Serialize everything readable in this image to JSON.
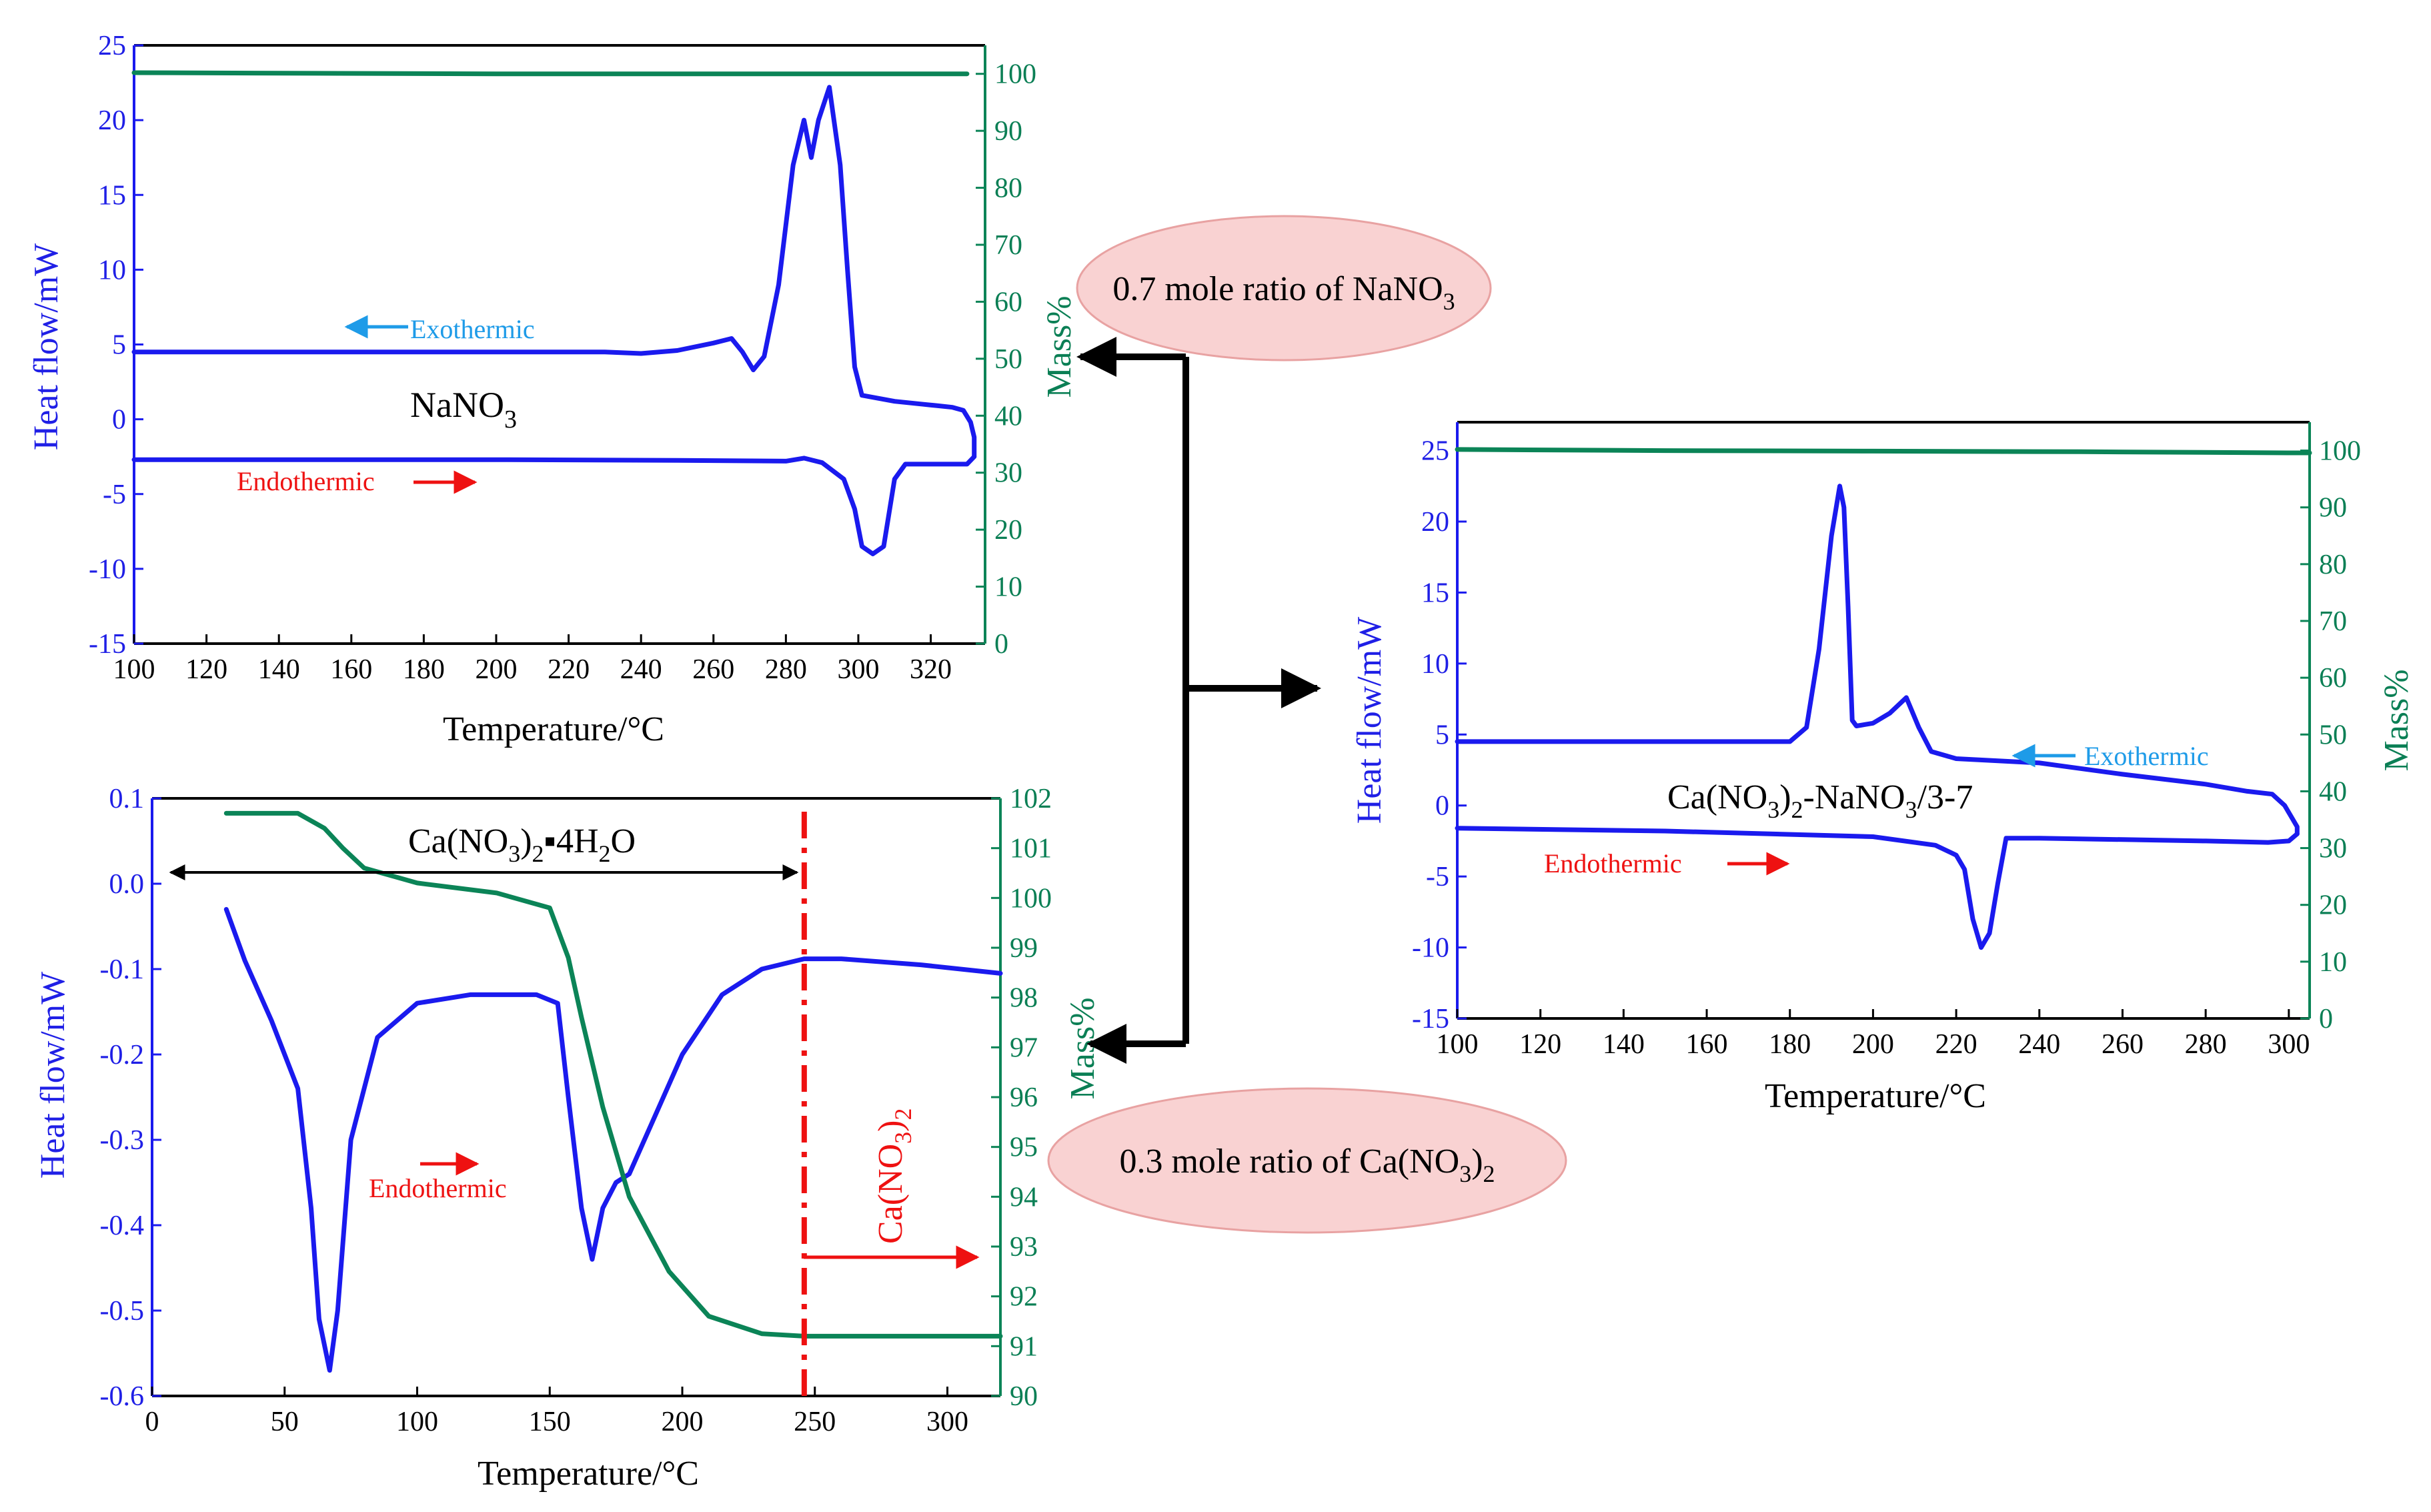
{
  "colors": {
    "heat": "#1a1aee",
    "mass": "#0b8457",
    "blue_text": "#1f1fe6",
    "green_text": "#0b7f55",
    "red": "#ee1111",
    "cyan": "#1e9be8",
    "bubble_fill": "#f9d2d2",
    "bubble_stroke": "#e8a2a2",
    "black": "#000000"
  },
  "bubbles": {
    "nano3": "0.7 mole ratio of NaNO",
    "nano3_sub": "3",
    "ca": "0.3 mole ratio of  Ca(NO",
    "ca_sub1": "3",
    "ca_close": ")",
    "ca_sub2": "2"
  },
  "chart_data": [
    {
      "id": "nano3",
      "type": "line",
      "title": "",
      "xlabel": "Temperature/°C",
      "ylabel": "Heat flow/mW",
      "y2label": "Mass%",
      "xlim": [
        100,
        335
      ],
      "ylim": [
        -15,
        25
      ],
      "y2lim": [
        0,
        105
      ],
      "x_ticks": [
        "100",
        "120",
        "140",
        "160",
        "180",
        "200",
        "220",
        "240",
        "260",
        "280",
        "300",
        "320"
      ],
      "y_ticks": [
        "-15",
        "-10",
        "-5",
        "0",
        "5",
        "10",
        "15",
        "20",
        "25"
      ],
      "y2_ticks": [
        "0",
        "10",
        "20",
        "30",
        "40",
        "50",
        "60",
        "70",
        "80",
        "90",
        "100"
      ],
      "annotations": {
        "exo": "Exothermic",
        "endo": "Endothermic",
        "sample": "NaNO",
        "sample_sub": "3"
      },
      "series": [
        {
          "name": "Heat flow (exothermic)",
          "axis": "left",
          "x": [
            100,
            150,
            200,
            230,
            240,
            250,
            260,
            265,
            268,
            271,
            274,
            278,
            282,
            285,
            287,
            289,
            292,
            295,
            297,
            299,
            301,
            310,
            318,
            322,
            326,
            329,
            331,
            332,
            332
          ],
          "y": [
            4.5,
            4.5,
            4.5,
            4.5,
            4.4,
            4.6,
            5.1,
            5.4,
            4.5,
            3.3,
            4.2,
            9,
            17,
            20,
            17.5,
            20,
            22.2,
            17,
            10,
            3.5,
            1.6,
            1.2,
            1,
            0.9,
            0.8,
            0.6,
            -0.2,
            -1.2,
            -2.5
          ]
        },
        {
          "name": "Heat flow (endothermic)",
          "axis": "left",
          "x": [
            100,
            150,
            200,
            250,
            280,
            285,
            290,
            296,
            299,
            301,
            304,
            307,
            310,
            313,
            318,
            325,
            330,
            332
          ],
          "y": [
            -2.7,
            -2.7,
            -2.7,
            -2.75,
            -2.8,
            -2.6,
            -2.9,
            -4,
            -6,
            -8.5,
            -9,
            -8.5,
            -4,
            -3,
            -3,
            -3,
            -3,
            -2.5
          ]
        },
        {
          "name": "Mass",
          "axis": "right",
          "x": [
            100,
            150,
            200,
            250,
            300,
            330
          ],
          "y": [
            100.2,
            100.1,
            100,
            100,
            100,
            100
          ]
        }
      ]
    },
    {
      "id": "cano3",
      "type": "line",
      "title": "",
      "xlabel": "Temperature/°C",
      "ylabel": "Heat flow/mW",
      "y2label": "Mass%",
      "xlim": [
        0,
        320
      ],
      "ylim": [
        -0.6,
        0.1
      ],
      "y2lim": [
        90,
        102
      ],
      "x_ticks": [
        "0",
        "50",
        "100",
        "150",
        "200",
        "250",
        "300"
      ],
      "y_ticks": [
        "-0.6",
        "-0.5",
        "-0.4",
        "-0.3",
        "-0.2",
        "-0.1",
        "0.0",
        "0.1"
      ],
      "y2_ticks": [
        "90",
        "91",
        "92",
        "93",
        "94",
        "95",
        "96",
        "97",
        "98",
        "99",
        "100",
        "101",
        "102"
      ],
      "annotations": {
        "endo": "Endothermic",
        "range_a": "Ca(NO",
        "range_sub1": "3",
        "range_b": ")",
        "range_sub2": "2",
        "range_c": "▪4H",
        "range_sub3": "2",
        "range_d": "O",
        "product": "Ca(NO",
        "product_sub1": "3",
        "product_b": ")",
        "product_sub2": "2",
        "boundary_x": 246
      },
      "series": [
        {
          "name": "Heat flow",
          "axis": "left",
          "x": [
            28,
            35,
            45,
            55,
            60,
            63,
            67,
            70,
            75,
            85,
            100,
            120,
            145,
            153,
            157,
            162,
            166,
            170,
            175,
            180,
            190,
            200,
            215,
            230,
            246,
            260,
            290,
            320
          ],
          "y": [
            -0.03,
            -0.09,
            -0.16,
            -0.24,
            -0.38,
            -0.51,
            -0.57,
            -0.5,
            -0.3,
            -0.18,
            -0.14,
            -0.13,
            -0.13,
            -0.14,
            -0.25,
            -0.38,
            -0.44,
            -0.38,
            -0.35,
            -0.34,
            -0.27,
            -0.2,
            -0.13,
            -0.1,
            -0.088,
            -0.088,
            -0.095,
            -0.105
          ]
        },
        {
          "name": "Mass",
          "axis": "right",
          "x": [
            28,
            40,
            55,
            65,
            72,
            80,
            100,
            130,
            150,
            157,
            162,
            170,
            180,
            195,
            210,
            230,
            246,
            300,
            320
          ],
          "y": [
            101.7,
            101.7,
            101.7,
            101.4,
            101,
            100.6,
            100.3,
            100.1,
            99.8,
            98.8,
            97.6,
            95.8,
            94,
            92.5,
            91.6,
            91.25,
            91.2,
            91.2,
            91.2
          ]
        }
      ]
    },
    {
      "id": "mixture",
      "type": "line",
      "title": "",
      "xlabel": "Temperature/°C",
      "ylabel": "Heat flow/mW",
      "y2label": "Mass%",
      "xlim": [
        100,
        305
      ],
      "ylim": [
        -15,
        27
      ],
      "y2lim": [
        0,
        105
      ],
      "x_ticks": [
        "100",
        "120",
        "140",
        "160",
        "180",
        "200",
        "220",
        "240",
        "260",
        "280",
        "300"
      ],
      "y_ticks": [
        "-15",
        "-10",
        "-5",
        "0",
        "5",
        "10",
        "15",
        "20",
        "25"
      ],
      "y2_ticks": [
        "0",
        "10",
        "20",
        "30",
        "40",
        "50",
        "60",
        "70",
        "80",
        "90",
        "100"
      ],
      "annotations": {
        "exo": "Exothermic",
        "endo": "Endothermic",
        "label_a": "Ca(NO",
        "label_sub1": "3",
        "label_b": ")",
        "label_sub2": "2",
        "label_c": "-NaNO",
        "label_sub3": "3",
        "label_d": "/3-7"
      },
      "series": [
        {
          "name": "Heat flow (exothermic)",
          "axis": "left",
          "x": [
            100,
            150,
            180,
            184,
            187,
            190,
            192,
            193,
            194,
            195,
            196,
            200,
            204,
            208,
            211,
            214,
            220,
            240,
            260,
            280,
            290,
            296,
            299,
            301,
            302,
            302
          ],
          "y": [
            4.5,
            4.5,
            4.5,
            5.5,
            11,
            19,
            22.5,
            21,
            14,
            6,
            5.6,
            5.8,
            6.5,
            7.6,
            5.5,
            3.8,
            3.3,
            3,
            2.2,
            1.5,
            1,
            0.8,
            0,
            -1,
            -1.5,
            -2
          ]
        },
        {
          "name": "Heat flow (endothermic)",
          "axis": "left",
          "x": [
            100,
            150,
            200,
            215,
            220,
            222,
            224,
            226,
            228,
            230,
            232,
            240,
            260,
            280,
            295,
            300,
            302
          ],
          "y": [
            -1.6,
            -1.8,
            -2.2,
            -2.8,
            -3.5,
            -4.5,
            -8,
            -10,
            -9,
            -5.5,
            -2.3,
            -2.3,
            -2.4,
            -2.5,
            -2.6,
            -2.5,
            -2
          ]
        },
        {
          "name": "Mass",
          "axis": "right",
          "x": [
            100,
            150,
            200,
            250,
            300,
            305
          ],
          "y": [
            100.2,
            100,
            99.9,
            99.8,
            99.6,
            99.6
          ]
        }
      ]
    }
  ]
}
